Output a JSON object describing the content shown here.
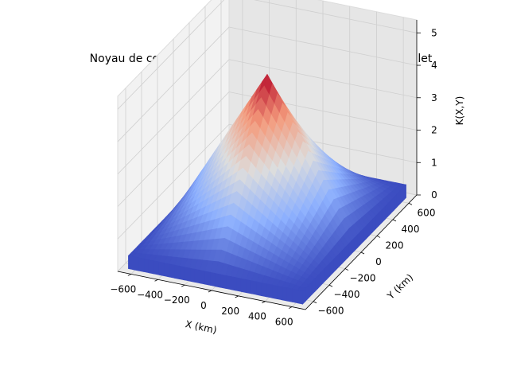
{
  "chart_data": {
    "type": "surface3d",
    "title": "Noyau de covariance spatial de l'évapotranspiration en juillet",
    "xlabel": "X (km)",
    "ylabel": "Y (km)",
    "zlabel": "K(X,Y)",
    "xlim": [
      -700,
      700
    ],
    "ylim": [
      -700,
      700
    ],
    "zlim": [
      0,
      5.4
    ],
    "x_ticks": [
      -600,
      -400,
      -200,
      0,
      200,
      400,
      600
    ],
    "x_tick_labels": [
      "−600",
      "−400",
      "−200",
      "0",
      "200",
      "400",
      "600"
    ],
    "y_ticks": [
      -600,
      -400,
      -200,
      0,
      200,
      400,
      600
    ],
    "y_tick_labels": [
      "−600",
      "−400",
      "−200",
      "0",
      "200",
      "400",
      "600"
    ],
    "z_ticks": [
      0,
      1,
      2,
      3,
      4,
      5
    ],
    "z_tick_labels": [
      "0",
      "1",
      "2",
      "3",
      "4",
      "5"
    ],
    "colormap": "coolwarm",
    "colormap_stops": [
      "#3b4cc0",
      "#8db0fe",
      "#dddddd",
      "#f49a7b",
      "#b40426"
    ],
    "grid": true,
    "surface": {
      "peak_value": 4.9,
      "peak_xy": [
        0,
        0
      ],
      "corner_value": 0.4,
      "x_extent": [
        -650,
        650
      ],
      "y_extent": [
        -650,
        650
      ]
    }
  }
}
